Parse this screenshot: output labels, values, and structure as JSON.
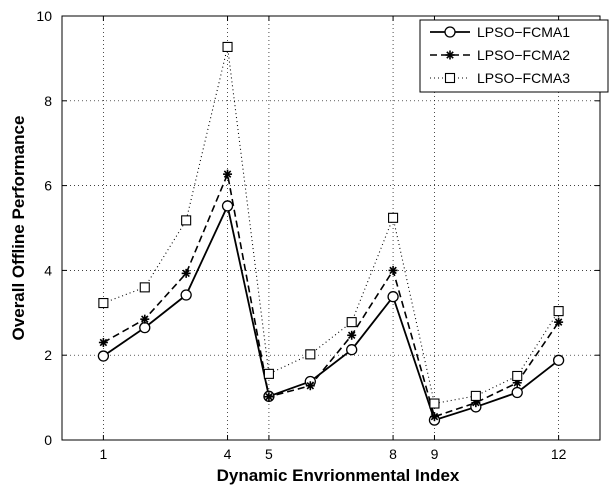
{
  "chart_data": {
    "type": "line",
    "title": "",
    "xlabel": "Dynamic Envrionmental Index",
    "ylabel": "Overall Offline Performance",
    "xlim": [
      0,
      13
    ],
    "ylim": [
      0,
      10
    ],
    "x_ticks": [
      1,
      4,
      5,
      8,
      9,
      12
    ],
    "y_ticks": [
      0,
      2,
      4,
      6,
      8,
      10
    ],
    "grid": true,
    "legend_position": "top-right",
    "x": [
      1,
      2,
      3,
      4,
      5,
      6,
      7,
      8,
      9,
      10,
      11,
      12
    ],
    "series": [
      {
        "name": "LPSO−FCMA1",
        "line_style": "solid",
        "marker": "circle",
        "values": [
          1.98,
          2.65,
          3.42,
          5.52,
          1.03,
          1.38,
          2.13,
          3.38,
          0.47,
          0.78,
          1.12,
          1.88
        ]
      },
      {
        "name": "LPSO−FCMA2",
        "line_style": "dashed",
        "marker": "asterisk",
        "values": [
          2.3,
          2.85,
          3.93,
          6.27,
          1.02,
          1.28,
          2.47,
          4.0,
          0.55,
          0.88,
          1.35,
          2.78
        ]
      },
      {
        "name": "LPSO−FCMA3",
        "line_style": "dotted",
        "marker": "square",
        "values": [
          3.23,
          3.6,
          5.18,
          9.27,
          1.56,
          2.02,
          2.78,
          5.24,
          0.86,
          1.04,
          1.51,
          3.04
        ]
      }
    ]
  }
}
